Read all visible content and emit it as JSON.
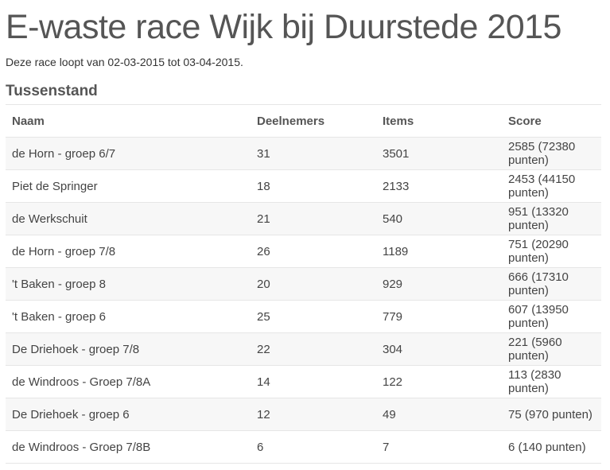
{
  "page": {
    "title": "E-waste race Wijk bij Duurstede 2015",
    "subtitle": "Deze race loopt van 02-03-2015 tot 03-04-2015.",
    "section_title": "Tussenstand"
  },
  "table": {
    "headers": [
      "Naam",
      "Deelnemers",
      "Items",
      "Score"
    ],
    "rows": [
      [
        "de Horn - groep 6/7",
        "31",
        "3501",
        "2585 (72380 punten)"
      ],
      [
        "Piet de Springer",
        "18",
        "2133",
        "2453 (44150 punten)"
      ],
      [
        "de Werkschuit",
        "21",
        "540",
        "951 (13320 punten)"
      ],
      [
        "de Horn - groep 7/8",
        "26",
        "1189",
        "751 (20290 punten)"
      ],
      [
        "'t Baken - groep 8",
        "20",
        "929",
        "666 (17310 punten)"
      ],
      [
        "'t Baken - groep 6",
        "25",
        "779",
        "607 (13950 punten)"
      ],
      [
        "De Driehoek - groep 7/8",
        "22",
        "304",
        "221 (5960 punten)"
      ],
      [
        "de Windroos - Groep 7/8A",
        "14",
        "122",
        "113 (2830 punten)"
      ],
      [
        "De Driehoek - groep 6",
        "12",
        "49",
        "75 (970 punten)"
      ],
      [
        "de Windroos - Groep 7/8B",
        "6",
        "7",
        "6 (140 punten)"
      ]
    ]
  }
}
